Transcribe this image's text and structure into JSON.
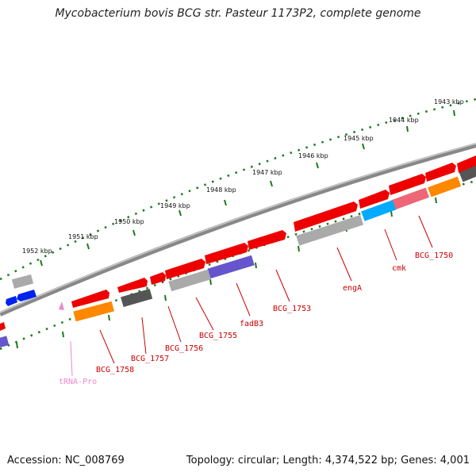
{
  "title": "Mycobacterium bovis BCG str. Pasteur 1173P2, complete genome",
  "footer": {
    "accession": "Accession: NC_008769",
    "summary": "Topology: circular; Length: 4,374,522 bp; Genes: 4,001"
  },
  "kbp_labels": [
    "1943 kbp",
    "1944 kbp",
    "1945 kbp",
    "1946 kbp",
    "1947 kbp",
    "1948 kbp",
    "1949 kbp",
    "1950 kbp",
    "1951 kbp",
    "1952 kbp"
  ],
  "gene_labels": [
    {
      "text": "BCG_1750",
      "color": "#cc0000"
    },
    {
      "text": "cmk",
      "color": "#cc0000"
    },
    {
      "text": "engA",
      "color": "#cc0000"
    },
    {
      "text": "BCG_1753",
      "color": "#cc0000"
    },
    {
      "text": "fadB3",
      "color": "#cc0000"
    },
    {
      "text": "BCG_1755",
      "color": "#cc0000"
    },
    {
      "text": "BCG_1756",
      "color": "#cc0000"
    },
    {
      "text": "BCG_1757",
      "color": "#cc0000"
    },
    {
      "text": "BCG_1758",
      "color": "#cc0000"
    },
    {
      "text": "tRNA-Pro",
      "color": "#ee88cc"
    }
  ],
  "colors": {
    "backbone": "#777777",
    "scale_ticks": "#1a7a1a",
    "gene_red": "#ee0000",
    "gene_blue": "#0022ee",
    "gene_orange": "#ff8800",
    "gene_cyan": "#00aaff",
    "gene_pink": "#ee6677",
    "gene_purple": "#6655cc",
    "gene_gray": "#aaaaaa",
    "gene_darkgray": "#555555",
    "trna_pink": "#ee88cc"
  }
}
